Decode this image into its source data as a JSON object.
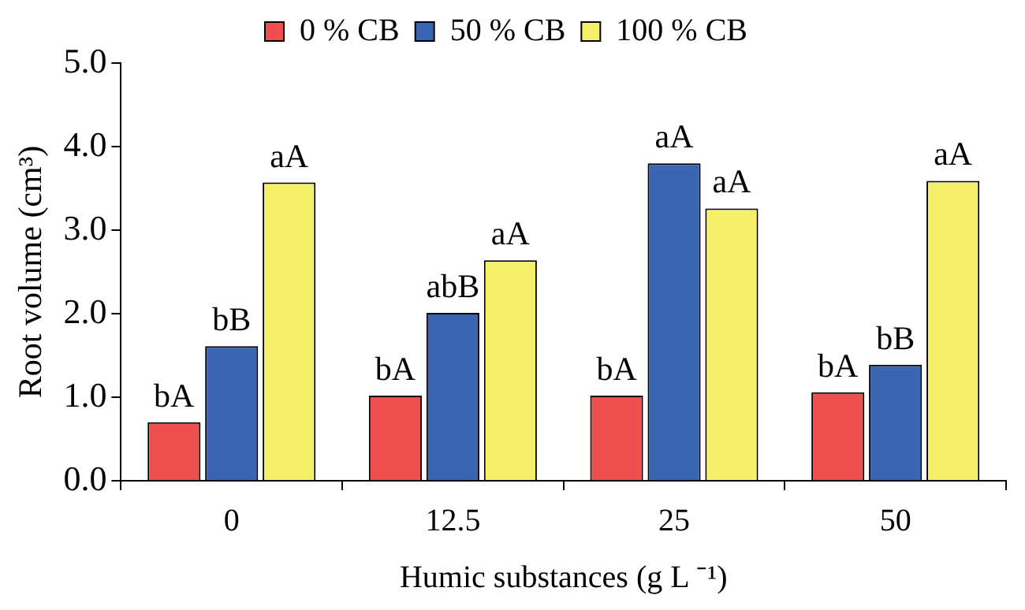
{
  "chart_data": {
    "type": "bar",
    "xlabel": "Humic substances (g L ⁻¹)",
    "ylabel": "Root volume (cm³)",
    "categories": [
      "0",
      "12.5",
      "25",
      "50"
    ],
    "series": [
      {
        "name": "0 % CB",
        "color": "#ee4f4f",
        "values": [
          0.7,
          1.02,
          1.02,
          1.06
        ],
        "value_labels": [
          "bA",
          "bA",
          "bA",
          "bA"
        ]
      },
      {
        "name": "50 % CB",
        "color": "#3b65b0",
        "values": [
          1.61,
          2.01,
          3.8,
          1.39
        ],
        "value_labels": [
          "bB",
          "abB",
          "aA",
          "bB"
        ]
      },
      {
        "name": "100 % CB",
        "color": "#f5ef6a",
        "values": [
          3.57,
          2.64,
          3.26,
          3.59
        ],
        "value_labels": [
          "aA",
          "aA",
          "aA",
          "aA"
        ]
      }
    ],
    "ylim": [
      0,
      5
    ],
    "yticks": [
      {
        "value": 0,
        "label": "0.0"
      },
      {
        "value": 1,
        "label": "1.0"
      },
      {
        "value": 2,
        "label": "2.0"
      },
      {
        "value": 3,
        "label": "3.0"
      },
      {
        "value": 4,
        "label": "4.0"
      },
      {
        "value": 5,
        "label": "5.0"
      }
    ],
    "grid": false,
    "legend": "top"
  }
}
